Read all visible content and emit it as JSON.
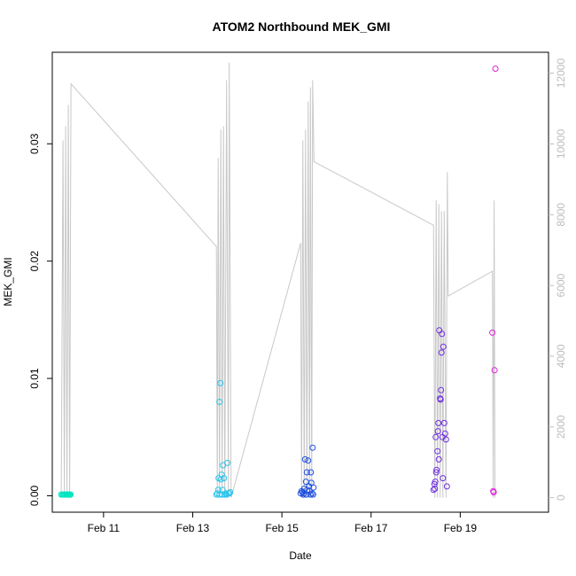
{
  "chart_data": {
    "type": "scatter",
    "title": "ATOM2 Northbound MEK_GMI",
    "xlabel": "Date",
    "ylabel": "MEK_GMI",
    "x_axis": {
      "unit": "date",
      "range_days": [
        9.85,
        20.98
      ],
      "ticks": [
        {
          "label": "Feb 11",
          "day": 11
        },
        {
          "label": "Feb 13",
          "day": 13
        },
        {
          "label": "Feb 15",
          "day": 15
        },
        {
          "label": "Feb 17",
          "day": 17
        },
        {
          "label": "Feb 19",
          "day": 19
        }
      ]
    },
    "y_axis_left": {
      "range": [
        -0.0014,
        0.0378
      ],
      "ticks": [
        0.0,
        0.01,
        0.02,
        0.03
      ],
      "tick_labels": [
        "0.00",
        "0.01",
        "0.02",
        "0.03"
      ]
    },
    "y_axis_right": {
      "color": "#bdbdbd",
      "range": [
        -410,
        12590
      ],
      "ticks": [
        0,
        2000,
        4000,
        6000,
        8000,
        10000,
        12000
      ],
      "tick_labels": [
        "0",
        "2000",
        "4000",
        "6000",
        "8000",
        "10000",
        "12000"
      ]
    },
    "altitude_line": {
      "color": "#c8c8c8",
      "points": [
        [
          10.05,
          0
        ],
        [
          10.09,
          10100
        ],
        [
          10.12,
          0
        ],
        [
          10.15,
          10500
        ],
        [
          10.18,
          0
        ],
        [
          10.21,
          11100
        ],
        [
          10.24,
          0
        ],
        [
          10.27,
          11700
        ],
        [
          13.53,
          7100
        ],
        [
          13.55,
          0
        ],
        [
          13.57,
          9600
        ],
        [
          13.6,
          0
        ],
        [
          13.63,
          10400
        ],
        [
          13.66,
          0
        ],
        [
          13.69,
          10500
        ],
        [
          13.72,
          0
        ],
        [
          13.76,
          11800
        ],
        [
          13.8,
          0
        ],
        [
          13.82,
          12300
        ],
        [
          13.86,
          0
        ],
        [
          15.42,
          7200
        ],
        [
          15.44,
          0
        ],
        [
          15.47,
          10100
        ],
        [
          15.5,
          0
        ],
        [
          15.53,
          10400
        ],
        [
          15.56,
          0
        ],
        [
          15.59,
          11200
        ],
        [
          15.62,
          0
        ],
        [
          15.64,
          11600
        ],
        [
          15.67,
          0
        ],
        [
          15.69,
          11800
        ],
        [
          15.72,
          9500
        ],
        [
          18.4,
          7700
        ],
        [
          18.43,
          0
        ],
        [
          18.46,
          8400
        ],
        [
          18.49,
          0
        ],
        [
          18.52,
          8300
        ],
        [
          18.55,
          0
        ],
        [
          18.58,
          8100
        ],
        [
          18.61,
          0
        ],
        [
          18.64,
          8100
        ],
        [
          18.68,
          0
        ],
        [
          18.71,
          9200
        ],
        [
          18.73,
          5700
        ],
        [
          19.72,
          6400
        ],
        [
          19.74,
          0
        ],
        [
          19.76,
          8400
        ],
        [
          19.78,
          0
        ]
      ]
    },
    "series": [
      {
        "color": "#00e5c0",
        "points": [
          [
            10.05,
            0.0001
          ],
          [
            10.08,
            0.0001
          ],
          [
            10.1,
            0.0001
          ],
          [
            10.12,
            0.0001
          ],
          [
            10.14,
            0.0001
          ],
          [
            10.16,
            0.0001
          ],
          [
            10.18,
            0.0001
          ],
          [
            10.2,
            0.0001
          ],
          [
            10.22,
            0.0001
          ],
          [
            10.24,
            0.0001
          ],
          [
            10.26,
            0.0001
          ]
        ]
      },
      {
        "color": "#29c4ec",
        "points": [
          [
            13.53,
            0.0001
          ],
          [
            13.55,
            0.0002
          ],
          [
            13.57,
            0.0005
          ],
          [
            13.58,
            0.0015
          ],
          [
            13.6,
            0.008
          ],
          [
            13.62,
            0.0096
          ],
          [
            13.63,
            0.0014
          ],
          [
            13.65,
            0.0018
          ],
          [
            13.67,
            0.0005
          ],
          [
            13.68,
            0.0026
          ],
          [
            13.7,
            0.0015
          ],
          [
            13.72,
            0.0001
          ],
          [
            13.74,
            0.0002
          ],
          [
            13.76,
            0.0001
          ],
          [
            13.78,
            0.0028
          ],
          [
            13.8,
            0.0002
          ],
          [
            13.82,
            0.0002
          ],
          [
            13.84,
            0.0003
          ],
          [
            13.6,
            0.0001
          ],
          [
            13.66,
            0.0001
          ]
        ]
      },
      {
        "color": "#1f4fe0",
        "points": [
          [
            15.42,
            0.0002
          ],
          [
            15.44,
            0.0004
          ],
          [
            15.46,
            0.0003
          ],
          [
            15.48,
            0.0001
          ],
          [
            15.5,
            0.0006
          ],
          [
            15.52,
            0.0031
          ],
          [
            15.54,
            0.0012
          ],
          [
            15.56,
            0.002
          ],
          [
            15.57,
            0.0005
          ],
          [
            15.59,
            0.003
          ],
          [
            15.61,
            0.0008
          ],
          [
            15.62,
            0.0004
          ],
          [
            15.64,
            0.0001
          ],
          [
            15.65,
            0.002
          ],
          [
            15.66,
            0.0011
          ],
          [
            15.68,
            0.0002
          ],
          [
            15.69,
            0.0041
          ],
          [
            15.7,
            0.0001
          ],
          [
            15.71,
            0.0007
          ],
          [
            15.49,
            0.0002
          ],
          [
            15.55,
            0.0001
          ]
        ]
      },
      {
        "color": "#6f2ee0",
        "points": [
          [
            18.4,
            0.0005
          ],
          [
            18.42,
            0.001
          ],
          [
            18.43,
            0.0006
          ],
          [
            18.45,
            0.005
          ],
          [
            18.46,
            0.002
          ],
          [
            18.47,
            0.0022
          ],
          [
            18.49,
            0.0038
          ],
          [
            18.5,
            0.0055
          ],
          [
            18.51,
            0.0062
          ],
          [
            18.52,
            0.0031
          ],
          [
            18.53,
            0.0141
          ],
          [
            18.55,
            0.0083
          ],
          [
            18.56,
            0.0082
          ],
          [
            18.57,
            0.009
          ],
          [
            18.58,
            0.0122
          ],
          [
            18.59,
            0.0138
          ],
          [
            18.6,
            0.005
          ],
          [
            18.61,
            0.0015
          ],
          [
            18.62,
            0.0127
          ],
          [
            18.64,
            0.0062
          ],
          [
            18.66,
            0.0053
          ],
          [
            18.68,
            0.0048
          ],
          [
            18.7,
            0.0008
          ],
          [
            18.44,
            0.0012
          ]
        ]
      },
      {
        "color": "#e020e0",
        "points": [
          [
            19.72,
            0.0139
          ],
          [
            19.74,
            0.0004
          ],
          [
            19.75,
            0.0003
          ],
          [
            19.77,
            0.0107
          ],
          [
            19.79,
            0.0364
          ]
        ]
      }
    ]
  }
}
